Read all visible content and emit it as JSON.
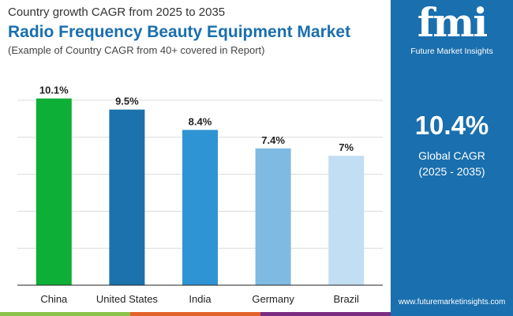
{
  "header": {
    "subtitle_top": "Country growth CAGR from 2025 to 2035",
    "title": "Radio Frequency Beauty Equipment Market",
    "note": "(Example of Country CAGR from 40+ covered in Report)"
  },
  "sidebar": {
    "logo_text": "fmi",
    "logo_caption": "Future Market Insights",
    "value": "10.4%",
    "label1": "Global CAGR",
    "label2": "(2025 - 2035)",
    "url": "www.futuremarketinsights.com",
    "bg": "#1a6fae"
  },
  "chart_data": {
    "type": "bar",
    "categories": [
      "China",
      "United States",
      "India",
      "Germany",
      "Brazil"
    ],
    "values": [
      10.1,
      9.5,
      8.4,
      7.4,
      7
    ],
    "data_labels": [
      "10.1%",
      "9.5%",
      "8.4%",
      "7.4%",
      "7%"
    ],
    "colors": [
      "#0daf36",
      "#1b72ad",
      "#2f94d4",
      "#7fbae2",
      "#c2def2"
    ],
    "ylim": [
      0,
      10
    ],
    "grid": true,
    "xlabel": "",
    "ylabel": ""
  },
  "stripes": [
    "#8bc34a",
    "#e4622c",
    "#7b2d82"
  ]
}
